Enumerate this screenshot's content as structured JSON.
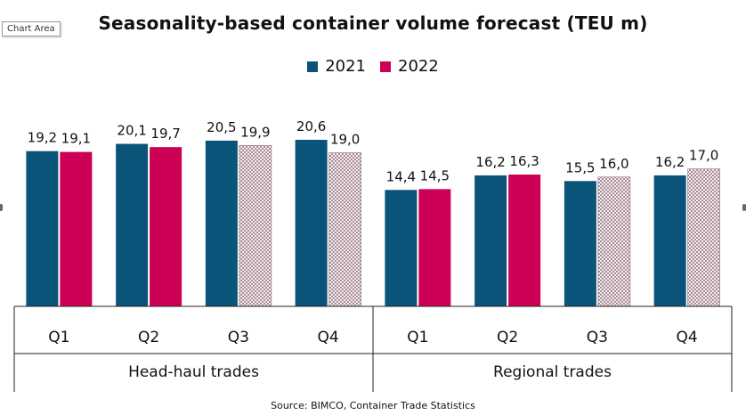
{
  "tooltip": "Chart Area",
  "chart_data": {
    "type": "bar",
    "title": "Seasonality-based container volume forecast (TEU m)",
    "groups": [
      "Head-haul trades",
      "Regional trades"
    ],
    "categories": [
      "Q1",
      "Q2",
      "Q3",
      "Q4",
      "Q1",
      "Q2",
      "Q3",
      "Q4"
    ],
    "series": [
      {
        "name": "2021",
        "values": [
          19.2,
          20.1,
          20.5,
          20.6,
          14.4,
          16.2,
          15.5,
          16.2
        ],
        "labels": [
          "19,2",
          "20,1",
          "20,5",
          "20,6",
          "14,4",
          "16,2",
          "15,5",
          "16,2"
        ]
      },
      {
        "name": "2022",
        "values": [
          19.1,
          19.7,
          19.9,
          19.0,
          14.5,
          16.3,
          16.0,
          17.0
        ],
        "labels": [
          "19,1",
          "19,7",
          "19,9",
          "19,0",
          "14,5",
          "16,3",
          "16,0",
          "17,0"
        ],
        "patterned": [
          false,
          false,
          true,
          true,
          false,
          false,
          true,
          true
        ]
      }
    ],
    "colors": {
      "2021": "#0b5479",
      "2022": "#cc0055"
    },
    "grid": false,
    "legend_position": "top"
  },
  "source": "Source: BIMCO, Container Trade Statistics"
}
